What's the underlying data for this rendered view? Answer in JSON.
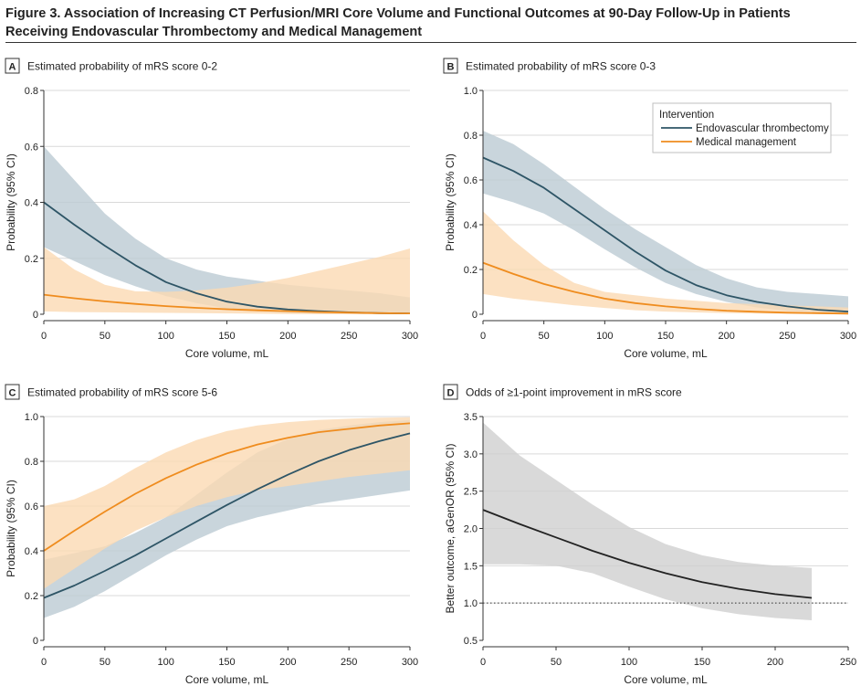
{
  "figure": {
    "title": "Figure 3. Association of Increasing CT Perfusion/MRI Core Volume and Functional Outcomes at 90-Day Follow-Up in Patients Receiving Endovascular Thrombectomy and Medical Management"
  },
  "colors": {
    "evt": "#2e5566",
    "evt_band": "#bccad3",
    "med": "#ef8c1e",
    "med_band": "#fbd9b3",
    "odds": "#222222",
    "odds_band": "#cfcfcf",
    "grid": "#d9d9d9"
  },
  "legend": {
    "title": "Intervention",
    "items": [
      "Endovascular thrombectomy",
      "Medical management"
    ]
  },
  "chart_data": [
    {
      "type": "line",
      "panel": "A",
      "title": "Estimated probability of mRS score 0-2",
      "xlabel": "Core volume, mL",
      "ylabel": "Probability (95% CI)",
      "xlim": [
        0,
        300
      ],
      "ylim": [
        0,
        0.8
      ],
      "xticks": [
        0,
        50,
        100,
        150,
        200,
        250,
        300
      ],
      "xtick_labels": [
        "0",
        "50",
        "100",
        "150",
        "200",
        "250",
        "300"
      ],
      "yticks": [
        0,
        0.2,
        0.4,
        0.6,
        0.8
      ],
      "ytick_labels": [
        "0",
        "0.2",
        "0.4",
        "0.6",
        "0.8"
      ],
      "grid": true,
      "x": [
        0,
        25,
        50,
        75,
        100,
        125,
        150,
        175,
        200,
        225,
        250,
        275,
        300
      ],
      "series": [
        {
          "name": "Endovascular thrombectomy",
          "color_key": "evt",
          "values": [
            0.4,
            0.32,
            0.245,
            0.175,
            0.115,
            0.075,
            0.045,
            0.027,
            0.017,
            0.011,
            0.007,
            0.004,
            0.003
          ],
          "lower": [
            0.24,
            0.19,
            0.14,
            0.1,
            0.065,
            0.04,
            0.02,
            0.01,
            0.005,
            0.003,
            0.002,
            0.001,
            0.0
          ],
          "upper": [
            0.6,
            0.48,
            0.36,
            0.27,
            0.2,
            0.16,
            0.135,
            0.12,
            0.105,
            0.095,
            0.085,
            0.075,
            0.06
          ]
        },
        {
          "name": "Medical management",
          "color_key": "med",
          "values": [
            0.07,
            0.057,
            0.046,
            0.037,
            0.029,
            0.023,
            0.018,
            0.014,
            0.011,
            0.008,
            0.006,
            0.004,
            0.003
          ],
          "lower": [
            0.01,
            0.008,
            0.007,
            0.006,
            0.005,
            0.004,
            0.003,
            0.002,
            0.001,
            0.0,
            0.0,
            0.0,
            0.0
          ],
          "upper": [
            0.24,
            0.16,
            0.105,
            0.082,
            0.08,
            0.085,
            0.095,
            0.11,
            0.13,
            0.155,
            0.18,
            0.205,
            0.235
          ]
        }
      ]
    },
    {
      "type": "line",
      "panel": "B",
      "title": "Estimated probability of mRS score 0-3",
      "xlabel": "Core volume, mL",
      "ylabel": "Probability (95% CI)",
      "xlim": [
        0,
        300
      ],
      "ylim": [
        0,
        1.0
      ],
      "xticks": [
        0,
        50,
        100,
        150,
        200,
        250,
        300
      ],
      "xtick_labels": [
        "0",
        "50",
        "100",
        "150",
        "200",
        "250",
        "300"
      ],
      "yticks": [
        0,
        0.2,
        0.4,
        0.6,
        0.8,
        1.0
      ],
      "ytick_labels": [
        "0",
        "0.2",
        "0.4",
        "0.6",
        "0.8",
        "1.0"
      ],
      "grid": true,
      "legend": "top-right",
      "x": [
        0,
        25,
        50,
        75,
        100,
        125,
        150,
        175,
        200,
        225,
        250,
        275,
        300
      ],
      "series": [
        {
          "name": "Endovascular thrombectomy",
          "color_key": "evt",
          "values": [
            0.7,
            0.64,
            0.565,
            0.47,
            0.375,
            0.28,
            0.195,
            0.13,
            0.085,
            0.055,
            0.035,
            0.02,
            0.012
          ],
          "lower": [
            0.54,
            0.5,
            0.45,
            0.375,
            0.29,
            0.21,
            0.14,
            0.09,
            0.055,
            0.03,
            0.015,
            0.008,
            0.004
          ],
          "upper": [
            0.82,
            0.76,
            0.67,
            0.57,
            0.47,
            0.38,
            0.3,
            0.22,
            0.16,
            0.12,
            0.1,
            0.09,
            0.08
          ]
        },
        {
          "name": "Medical management",
          "color_key": "med",
          "values": [
            0.23,
            0.18,
            0.135,
            0.1,
            0.07,
            0.05,
            0.035,
            0.024,
            0.016,
            0.011,
            0.007,
            0.005,
            0.003
          ],
          "lower": [
            0.09,
            0.07,
            0.055,
            0.04,
            0.028,
            0.018,
            0.012,
            0.008,
            0.005,
            0.003,
            0.002,
            0.001,
            0.0
          ],
          "upper": [
            0.46,
            0.33,
            0.22,
            0.14,
            0.1,
            0.085,
            0.07,
            0.06,
            0.05,
            0.045,
            0.04,
            0.035,
            0.03
          ]
        }
      ]
    },
    {
      "type": "line",
      "panel": "C",
      "title": "Estimated probability of mRS score 5-6",
      "xlabel": "Core volume, mL",
      "ylabel": "Probability (95% CI)",
      "xlim": [
        0,
        300
      ],
      "ylim": [
        0,
        1.0
      ],
      "xticks": [
        0,
        50,
        100,
        150,
        200,
        250,
        300
      ],
      "xtick_labels": [
        "0",
        "50",
        "100",
        "150",
        "200",
        "250",
        "300"
      ],
      "yticks": [
        0,
        0.2,
        0.4,
        0.6,
        0.8,
        1.0
      ],
      "ytick_labels": [
        "0",
        "0.2",
        "0.4",
        "0.6",
        "0.8",
        "1.0"
      ],
      "grid": true,
      "x": [
        0,
        25,
        50,
        75,
        100,
        125,
        150,
        175,
        200,
        225,
        250,
        275,
        300
      ],
      "series": [
        {
          "name": "Endovascular thrombectomy",
          "color_key": "evt",
          "values": [
            0.19,
            0.245,
            0.31,
            0.38,
            0.455,
            0.53,
            0.605,
            0.675,
            0.74,
            0.8,
            0.85,
            0.89,
            0.925
          ],
          "lower": [
            0.1,
            0.15,
            0.22,
            0.3,
            0.38,
            0.45,
            0.51,
            0.55,
            0.58,
            0.61,
            0.63,
            0.65,
            0.67
          ],
          "upper": [
            0.36,
            0.39,
            0.42,
            0.48,
            0.55,
            0.65,
            0.75,
            0.84,
            0.9,
            0.94,
            0.96,
            0.975,
            0.985
          ]
        },
        {
          "name": "Medical management",
          "color_key": "med",
          "values": [
            0.4,
            0.49,
            0.575,
            0.655,
            0.725,
            0.785,
            0.835,
            0.875,
            0.905,
            0.93,
            0.945,
            0.96,
            0.97
          ],
          "lower": [
            0.23,
            0.32,
            0.41,
            0.49,
            0.55,
            0.6,
            0.64,
            0.67,
            0.69,
            0.71,
            0.73,
            0.745,
            0.76
          ],
          "upper": [
            0.6,
            0.63,
            0.69,
            0.77,
            0.84,
            0.895,
            0.935,
            0.96,
            0.975,
            0.985,
            0.99,
            0.995,
            0.997
          ]
        }
      ]
    },
    {
      "type": "line",
      "panel": "D",
      "title": "Odds of ≥1-point improvement in mRS score",
      "xlabel": "Core volume, mL",
      "ylabel": "Better outcome, aGenOR (95% CI)",
      "xlim": [
        0,
        250
      ],
      "ylim": [
        0.5,
        3.5
      ],
      "xticks": [
        0,
        50,
        100,
        150,
        200,
        250
      ],
      "xtick_labels": [
        "0",
        "50",
        "100",
        "150",
        "200",
        "250"
      ],
      "yticks": [
        0.5,
        1.0,
        1.5,
        2.0,
        2.5,
        3.0,
        3.5
      ],
      "ytick_labels": [
        "0.5",
        "1.0",
        "1.5",
        "2.0",
        "2.5",
        "3.0",
        "3.5"
      ],
      "grid": true,
      "reference_line": 1.0,
      "x": [
        0,
        25,
        50,
        75,
        100,
        125,
        150,
        175,
        200,
        225
      ],
      "series": [
        {
          "name": "",
          "color_key": "odds",
          "values": [
            2.25,
            2.06,
            1.88,
            1.7,
            1.54,
            1.4,
            1.28,
            1.19,
            1.12,
            1.07
          ],
          "lower": [
            1.52,
            1.52,
            1.5,
            1.4,
            1.22,
            1.05,
            0.93,
            0.85,
            0.8,
            0.77
          ],
          "upper": [
            3.42,
            2.98,
            2.65,
            2.32,
            2.02,
            1.79,
            1.64,
            1.55,
            1.5,
            1.47
          ]
        }
      ]
    }
  ]
}
